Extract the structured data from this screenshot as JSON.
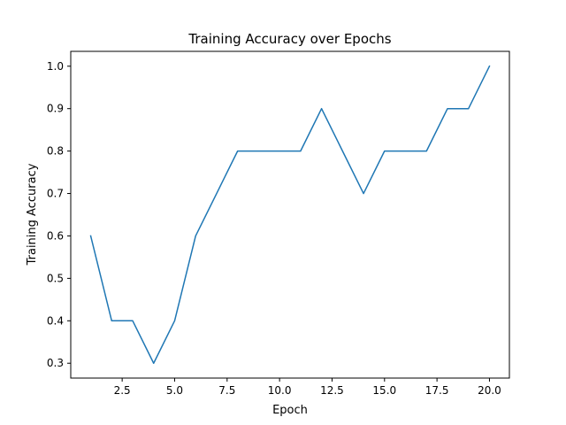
{
  "chart_data": {
    "type": "line",
    "title": "Training Accuracy over Epochs",
    "xlabel": "Epoch",
    "ylabel": "Training Accuracy",
    "xlim": [
      0.05,
      20.95
    ],
    "ylim": [
      0.265,
      1.035
    ],
    "grid": false,
    "x_ticks": [
      2.5,
      5.0,
      7.5,
      10.0,
      12.5,
      15.0,
      17.5,
      20.0
    ],
    "x_tick_labels": [
      "2.5",
      "5.0",
      "7.5",
      "10.0",
      "12.5",
      "15.0",
      "17.5",
      "20.0"
    ],
    "y_ticks": [
      0.3,
      0.4,
      0.5,
      0.6,
      0.7,
      0.8,
      0.9,
      1.0
    ],
    "y_tick_labels": [
      "0.3",
      "0.4",
      "0.5",
      "0.6",
      "0.7",
      "0.8",
      "0.9",
      "1.0"
    ],
    "series": [
      {
        "color": "#1f77b4",
        "x": [
          1,
          2,
          3,
          4,
          5,
          6,
          7,
          8,
          9,
          10,
          11,
          12,
          13,
          14,
          15,
          16,
          17,
          18,
          19,
          20
        ],
        "y": [
          0.6,
          0.4,
          0.4,
          0.3,
          0.4,
          0.6,
          0.7,
          0.8,
          0.8,
          0.8,
          0.8,
          0.9,
          0.8,
          0.7,
          0.8,
          0.8,
          0.8,
          0.9,
          0.9,
          1.0
        ]
      }
    ]
  }
}
